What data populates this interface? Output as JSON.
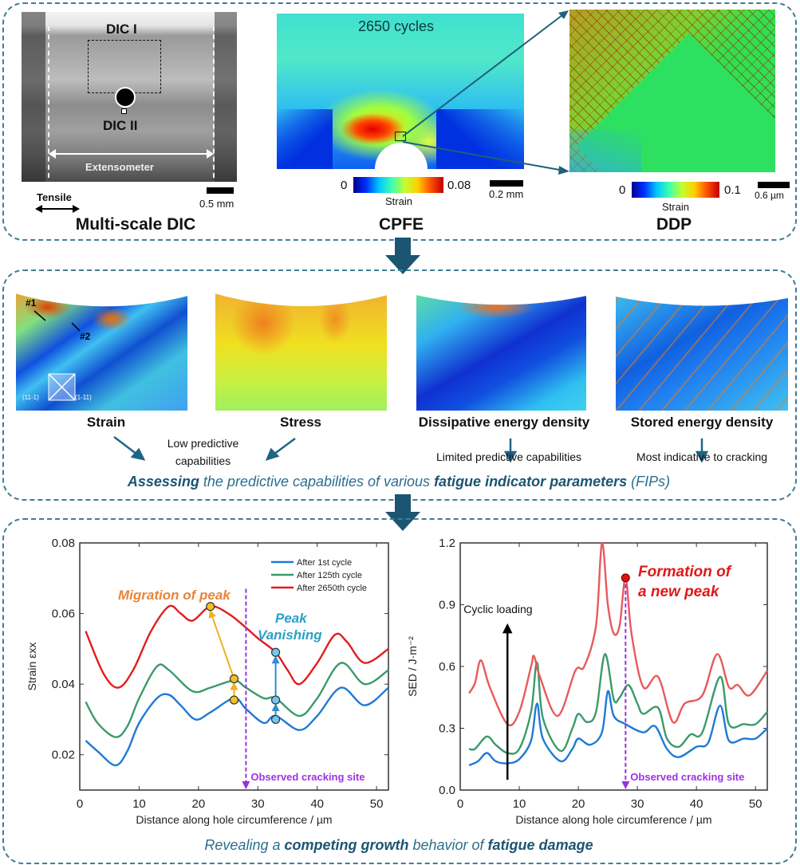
{
  "top_panel": {
    "dic": {
      "title": "Multi-scale DIC",
      "label_dic1": "DIC I",
      "label_dic2": "DIC II",
      "extensometer": "Extensometer",
      "tensile": "Tensile",
      "scale": "0.5 mm"
    },
    "cpfe": {
      "title": "CPFE",
      "cycles": "2650 cycles",
      "cbar_min": "0",
      "cbar_max": "0.08",
      "cbar_label": "Strain",
      "scale": "0.2 mm"
    },
    "ddp": {
      "title": "DDP",
      "cbar_min": "0",
      "cbar_max": "0.1",
      "cbar_label": "Strain",
      "scale": "0.6 µm"
    }
  },
  "middle_panel": {
    "maps": [
      {
        "label": "Strain",
        "marker1": "#1",
        "marker2": "#2",
        "plane1": "(11-1)",
        "plane2": "(1-11)"
      },
      {
        "label": "Stress"
      },
      {
        "label": "Dissipative energy density"
      },
      {
        "label": "Stored energy density"
      }
    ],
    "low_predictive": "Low predictive capabilities",
    "limited_predictive": "Limited predictive capabilities",
    "most_indicative": "Most indicative to cracking",
    "caption": {
      "p1": "Assessing",
      "p2": " the predictive capabilities of various ",
      "p3": "fatigue indicator parameters",
      "p4": " (FIPs)"
    }
  },
  "bottom_panel": {
    "caption": {
      "p1": "Revealing a ",
      "p2": "competing growth",
      "p3": " behavior of ",
      "p4": "fatigue damage"
    }
  },
  "colors": {
    "accent": "#3f7d98",
    "arrow": "#1b5572",
    "blue": "#1f7ad6",
    "green": "#3b9a6c",
    "red": "#e21d1d",
    "red_light": "#e85a5c",
    "purple": "#9a30e0",
    "orange": "#f0a030"
  },
  "chart_data": [
    {
      "type": "line",
      "xlabel": "Distance along hole circumference / µm",
      "ylabel": "Strain ε_xx",
      "xlim": [
        0,
        52
      ],
      "ylim": [
        0.01,
        0.08
      ],
      "xticks": [
        0,
        10,
        20,
        30,
        40,
        50
      ],
      "yticks": [
        0.02,
        0.04,
        0.06,
        0.08
      ],
      "legend": "top-right",
      "grid": false,
      "series": [
        {
          "name": "After 1st cycle",
          "color": "#1f7ad6",
          "x": [
            1,
            3,
            6,
            8,
            10,
            13,
            15,
            17,
            19.5,
            22,
            26,
            28,
            31,
            33,
            37,
            40,
            44,
            48,
            52
          ],
          "y": [
            0.024,
            0.021,
            0.017,
            0.021,
            0.029,
            0.036,
            0.037,
            0.034,
            0.03,
            0.032,
            0.036,
            0.033,
            0.029,
            0.031,
            0.027,
            0.031,
            0.039,
            0.034,
            0.039
          ]
        },
        {
          "name": "After 125th cycle",
          "color": "#3b9a6c",
          "x": [
            1,
            3,
            6,
            8,
            10,
            13,
            15,
            19,
            22,
            26,
            28,
            31,
            33,
            37,
            40,
            44,
            48,
            52
          ],
          "y": [
            0.035,
            0.029,
            0.025,
            0.028,
            0.036,
            0.045,
            0.044,
            0.038,
            0.039,
            0.041,
            0.039,
            0.036,
            0.036,
            0.031,
            0.036,
            0.046,
            0.04,
            0.044
          ]
        },
        {
          "name": "After 2650th cycle",
          "color": "#e21d1d",
          "x": [
            1,
            4,
            6.5,
            9,
            12,
            15,
            17,
            19,
            22,
            25,
            28,
            30,
            33,
            35,
            37,
            40,
            43,
            45,
            48,
            52
          ],
          "y": [
            0.055,
            0.043,
            0.039,
            0.044,
            0.055,
            0.062,
            0.06,
            0.058,
            0.062,
            0.06,
            0.056,
            0.053,
            0.049,
            0.044,
            0.04,
            0.046,
            0.054,
            0.052,
            0.046,
            0.05
          ]
        }
      ],
      "markers": {
        "migration": [
          [
            22,
            0.062
          ],
          [
            26,
            0.0415
          ],
          [
            26,
            0.0355
          ]
        ],
        "vanishing": [
          [
            33,
            0.049
          ],
          [
            33,
            0.0355
          ],
          [
            33,
            0.03
          ]
        ]
      },
      "crack_site_x": 28,
      "annotations": [
        "Migration of peak",
        "Peak Vanishing",
        "Observed cracking site"
      ]
    },
    {
      "type": "line",
      "xlabel": "Distance along hole circumference / µm",
      "ylabel": "SED / J·m⁻²",
      "xlim": [
        0,
        52
      ],
      "ylim": [
        0,
        1.2
      ],
      "xticks": [
        0,
        10,
        20,
        30,
        40,
        50
      ],
      "yticks": [
        0.0,
        0.3,
        0.6,
        0.9,
        1.2
      ],
      "grid": false,
      "series": [
        {
          "color": "#1f7ad6",
          "x": [
            1.5,
            3,
            4.5,
            6,
            8,
            10,
            12,
            13,
            14,
            17,
            19,
            20,
            22,
            24,
            25,
            26,
            28,
            31,
            33,
            35,
            37,
            40,
            42,
            44,
            45.5,
            48,
            50,
            52
          ],
          "y": [
            0.12,
            0.14,
            0.18,
            0.14,
            0.13,
            0.15,
            0.24,
            0.42,
            0.25,
            0.14,
            0.2,
            0.25,
            0.22,
            0.28,
            0.48,
            0.36,
            0.32,
            0.28,
            0.31,
            0.2,
            0.16,
            0.21,
            0.23,
            0.41,
            0.24,
            0.25,
            0.25,
            0.3
          ]
        },
        {
          "color": "#3b9a6c",
          "x": [
            1.5,
            2.5,
            4.5,
            6,
            8,
            10,
            12,
            13,
            14,
            17,
            19,
            20,
            21.5,
            23,
            24.5,
            26,
            27,
            28.5,
            30,
            31,
            33.5,
            35,
            37,
            39,
            41,
            44,
            45.5,
            48,
            50,
            52
          ],
          "y": [
            0.2,
            0.2,
            0.26,
            0.22,
            0.18,
            0.2,
            0.38,
            0.62,
            0.35,
            0.19,
            0.3,
            0.37,
            0.33,
            0.38,
            0.66,
            0.44,
            0.45,
            0.51,
            0.42,
            0.37,
            0.4,
            0.25,
            0.21,
            0.27,
            0.28,
            0.55,
            0.32,
            0.32,
            0.32,
            0.38
          ]
        },
        {
          "color": "#e85a5c",
          "x": [
            1.5,
            2.5,
            3.5,
            5,
            8,
            10,
            12,
            12.5,
            13.5,
            16.5,
            19.5,
            21,
            23,
            24,
            25,
            26,
            27,
            28,
            29,
            31,
            33.5,
            36,
            38,
            41,
            43.5,
            45.5,
            47,
            49,
            52
          ],
          "y": [
            0.47,
            0.52,
            0.63,
            0.5,
            0.32,
            0.38,
            0.6,
            0.65,
            0.55,
            0.36,
            0.58,
            0.6,
            0.8,
            1.2,
            0.9,
            0.76,
            0.8,
            1.03,
            0.76,
            0.5,
            0.55,
            0.33,
            0.42,
            0.46,
            0.66,
            0.5,
            0.51,
            0.46,
            0.58
          ]
        }
      ],
      "markers": {
        "new_peak": [
          28,
          1.03
        ]
      },
      "crack_site_x": 28,
      "cyclic_arrow_x": 8,
      "annotations": [
        "Cyclic loading",
        "Formation of a new peak",
        "Observed cracking site"
      ]
    }
  ]
}
